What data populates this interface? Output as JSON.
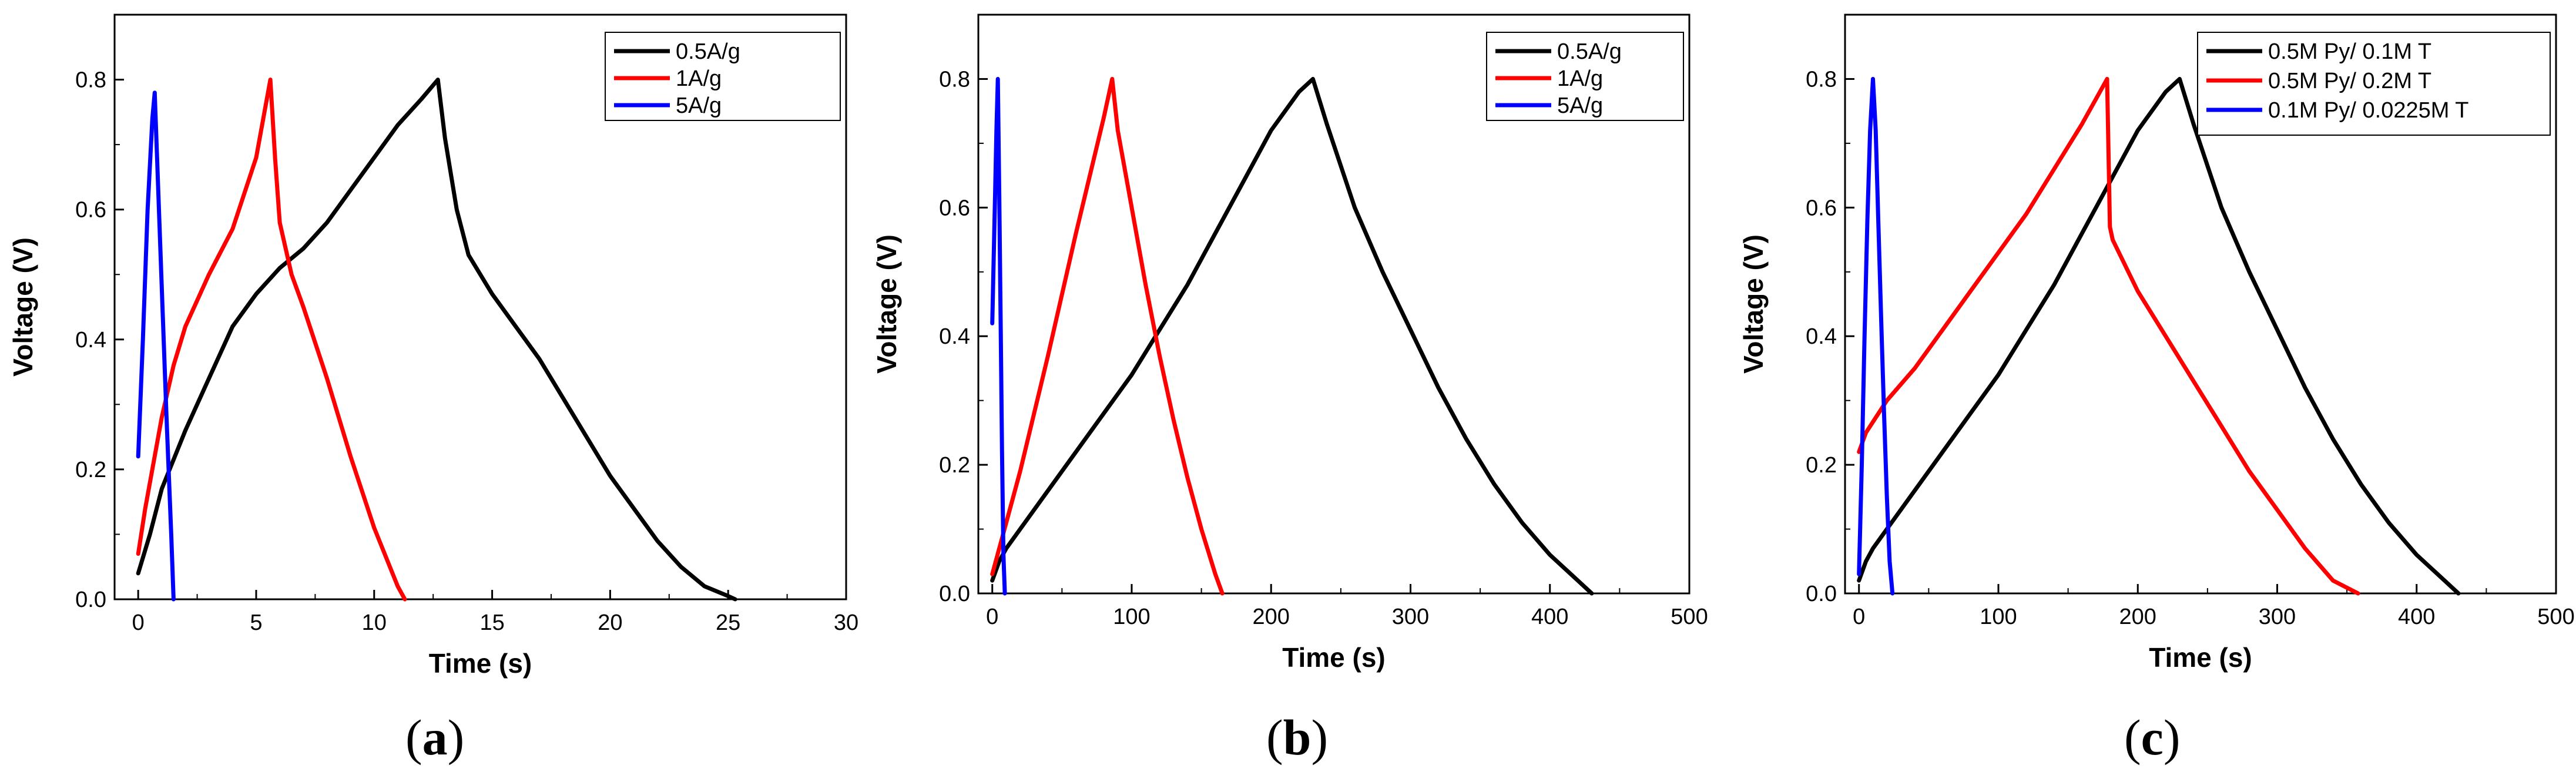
{
  "chart_data": [
    {
      "type": "line",
      "panel_label": "a",
      "xlabel": "Time (s)",
      "ylabel": "Voltage (V)",
      "xlim": [
        -1,
        30
      ],
      "ylim": [
        0,
        0.9
      ],
      "xticks": [
        0,
        5,
        10,
        15,
        20,
        25,
        30
      ],
      "xtick_labels": [
        "0",
        "5",
        "10",
        "15",
        "20",
        "25",
        "30"
      ],
      "yticks": [
        0.0,
        0.2,
        0.4,
        0.6,
        0.8
      ],
      "ytick_labels": [
        "0.0",
        "0.2",
        "0.4",
        "0.6",
        "0.8"
      ],
      "legend_position": "top-right",
      "series": [
        {
          "name": "0.5A/g",
          "color": "#000000",
          "x": [
            0,
            0.5,
            1,
            2,
            3,
            4,
            5,
            6,
            7,
            8,
            9,
            10,
            11,
            12,
            12.7,
            13,
            13.5,
            14,
            15,
            16,
            17,
            18,
            19,
            20,
            21,
            22,
            23,
            24,
            25,
            25.3
          ],
          "y": [
            0.04,
            0.1,
            0.17,
            0.26,
            0.34,
            0.42,
            0.47,
            0.51,
            0.54,
            0.58,
            0.63,
            0.68,
            0.73,
            0.77,
            0.8,
            0.71,
            0.6,
            0.53,
            0.47,
            0.42,
            0.37,
            0.31,
            0.25,
            0.19,
            0.14,
            0.09,
            0.05,
            0.02,
            0.005,
            0.0
          ]
        },
        {
          "name": "1A/g",
          "color": "#ff0000",
          "x": [
            0,
            0.3,
            1,
            1.5,
            2,
            3,
            4,
            5,
            5.6,
            5.8,
            6,
            6.5,
            7,
            8,
            9,
            10,
            11,
            11.3
          ],
          "y": [
            0.07,
            0.14,
            0.28,
            0.36,
            0.42,
            0.5,
            0.57,
            0.68,
            0.8,
            0.68,
            0.58,
            0.5,
            0.45,
            0.34,
            0.22,
            0.11,
            0.02,
            0.0
          ]
        },
        {
          "name": "5A/g",
          "color": "#0000ff",
          "x": [
            0,
            0.2,
            0.4,
            0.6,
            0.7,
            0.8,
            1,
            1.2,
            1.4,
            1.5
          ],
          "y": [
            0.22,
            0.4,
            0.6,
            0.74,
            0.78,
            0.68,
            0.48,
            0.28,
            0.1,
            0.0
          ]
        }
      ]
    },
    {
      "type": "line",
      "panel_label": "b",
      "xlabel": "Time (s)",
      "ylabel": "Voltage (V)",
      "xlim": [
        -10,
        500
      ],
      "ylim": [
        0,
        0.9
      ],
      "xticks": [
        0,
        100,
        200,
        300,
        400,
        500
      ],
      "xtick_labels": [
        "0",
        "100",
        "200",
        "300",
        "400",
        "500"
      ],
      "yticks": [
        0.0,
        0.2,
        0.4,
        0.6,
        0.8
      ],
      "ytick_labels": [
        "0.0",
        "0.2",
        "0.4",
        "0.6",
        "0.8"
      ],
      "legend_position": "top-right",
      "series": [
        {
          "name": "0.5A/g",
          "color": "#000000",
          "x": [
            0,
            5,
            10,
            20,
            40,
            60,
            80,
            100,
            120,
            140,
            160,
            180,
            200,
            220,
            230,
            240,
            260,
            280,
            300,
            320,
            340,
            360,
            380,
            400,
            420,
            430
          ],
          "y": [
            0.02,
            0.05,
            0.07,
            0.1,
            0.16,
            0.22,
            0.28,
            0.34,
            0.41,
            0.48,
            0.56,
            0.64,
            0.72,
            0.78,
            0.8,
            0.73,
            0.6,
            0.5,
            0.41,
            0.32,
            0.24,
            0.17,
            0.11,
            0.06,
            0.02,
            0.0
          ]
        },
        {
          "name": "1A/g",
          "color": "#ff0000",
          "x": [
            0,
            5,
            10,
            20,
            40,
            60,
            80,
            86,
            90,
            100,
            110,
            120,
            130,
            140,
            150,
            160,
            165
          ],
          "y": [
            0.03,
            0.07,
            0.11,
            0.19,
            0.37,
            0.56,
            0.74,
            0.8,
            0.72,
            0.6,
            0.48,
            0.37,
            0.27,
            0.18,
            0.1,
            0.03,
            0.0
          ]
        },
        {
          "name": "5A/g",
          "color": "#0000ff",
          "x": [
            0,
            1,
            2,
            3,
            4,
            5,
            6,
            7,
            8,
            9
          ],
          "y": [
            0.42,
            0.52,
            0.62,
            0.72,
            0.8,
            0.62,
            0.42,
            0.22,
            0.06,
            0.0
          ]
        }
      ]
    },
    {
      "type": "line",
      "panel_label": "c",
      "xlabel": "Time (s)",
      "ylabel": "Voltage (V)",
      "xlim": [
        -10,
        500
      ],
      "ylim": [
        0,
        0.9
      ],
      "xticks": [
        0,
        100,
        200,
        300,
        400,
        500
      ],
      "xtick_labels": [
        "0",
        "100",
        "200",
        "300",
        "400",
        "500"
      ],
      "yticks": [
        0.0,
        0.2,
        0.4,
        0.6,
        0.8
      ],
      "ytick_labels": [
        "0.0",
        "0.2",
        "0.4",
        "0.6",
        "0.8"
      ],
      "legend_position": "top-right",
      "series": [
        {
          "name": "0.5M Py/ 0.1M T",
          "color": "#000000",
          "x": [
            0,
            5,
            10,
            20,
            40,
            60,
            80,
            100,
            120,
            140,
            160,
            180,
            200,
            220,
            230,
            240,
            260,
            280,
            300,
            320,
            340,
            360,
            380,
            400,
            420,
            430
          ],
          "y": [
            0.02,
            0.05,
            0.07,
            0.1,
            0.16,
            0.22,
            0.28,
            0.34,
            0.41,
            0.48,
            0.56,
            0.64,
            0.72,
            0.78,
            0.8,
            0.73,
            0.6,
            0.5,
            0.41,
            0.32,
            0.24,
            0.17,
            0.11,
            0.06,
            0.02,
            0.0
          ]
        },
        {
          "name": "0.5M Py/ 0.2M T",
          "color": "#ff0000",
          "x": [
            0,
            5,
            20,
            40,
            60,
            80,
            100,
            120,
            140,
            160,
            178,
            180,
            182,
            200,
            220,
            240,
            260,
            280,
            300,
            320,
            340,
            358
          ],
          "y": [
            0.22,
            0.25,
            0.3,
            0.35,
            0.41,
            0.47,
            0.53,
            0.59,
            0.66,
            0.73,
            0.8,
            0.57,
            0.55,
            0.47,
            0.4,
            0.33,
            0.26,
            0.19,
            0.13,
            0.07,
            0.02,
            0.0
          ]
        },
        {
          "name": "0.1M Py/ 0.0225M T",
          "color": "#0000ff",
          "x": [
            0,
            2,
            4,
            6,
            8,
            10,
            12,
            14,
            16,
            18,
            20,
            22,
            24
          ],
          "y": [
            0.03,
            0.2,
            0.4,
            0.58,
            0.72,
            0.8,
            0.72,
            0.57,
            0.42,
            0.28,
            0.15,
            0.05,
            0.0
          ]
        }
      ]
    }
  ],
  "captions": [
    "a",
    "b",
    "c"
  ]
}
